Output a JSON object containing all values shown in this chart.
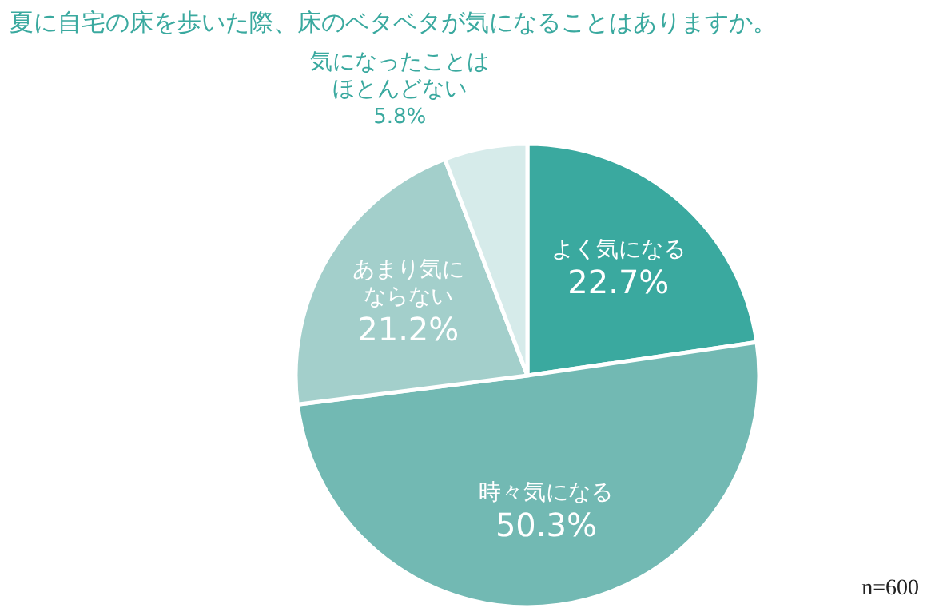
{
  "chart_data": {
    "type": "pie",
    "title": "夏に自宅の床を歩いた際、床のベタベタが気になることはありますか。",
    "categories": [
      "よく気になる",
      "時々気になる",
      "あまり気にならない",
      "気になったことはほとんどない"
    ],
    "values": [
      22.7,
      50.3,
      21.2,
      5.8
    ],
    "value_labels": [
      "22.7%",
      "50.3%",
      "21.2%",
      "5.8%"
    ],
    "colors": [
      "#3aa99f",
      "#72b9b3",
      "#a3cfcb",
      "#d6ebea"
    ],
    "annotations": [
      "n=600"
    ]
  }
}
